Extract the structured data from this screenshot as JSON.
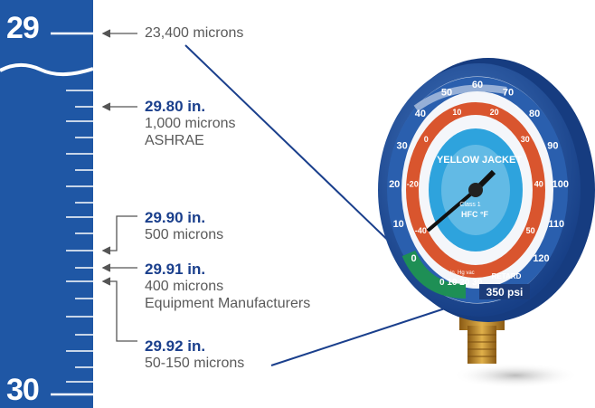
{
  "scale": {
    "top_label": "29",
    "bottom_label": "30"
  },
  "callouts": [
    {
      "lines": [
        "23,400 microns"
      ]
    },
    {
      "value": "29.80 in.",
      "lines": [
        "1,000 microns",
        "ASHRAE"
      ]
    },
    {
      "value": "29.90 in.",
      "lines": [
        "500 microns"
      ]
    },
    {
      "value": "29.91 in.",
      "lines": [
        "400 microns",
        "Equipment Manufacturers"
      ]
    },
    {
      "value": "29.92 in.",
      "lines": [
        "50-150 microns"
      ]
    }
  ],
  "gauge": {
    "brand": "YELLOW JACKET",
    "refrigerant": "HFC °F",
    "class_text": "Class 1",
    "retard_label": "RETARD",
    "psi_label": "350 psi",
    "vacuum_label": "in. Hg vac",
    "vacuum_ticks": [
      "0",
      "10",
      "20",
      "30"
    ],
    "blue_ticks": [
      "0",
      "10",
      "20",
      "30",
      "40",
      "50",
      "60",
      "70",
      "80",
      "90",
      "100",
      "110",
      "120"
    ],
    "red_ticks": [
      "-40",
      "-20",
      "0",
      "10",
      "20",
      "30",
      "40",
      "50"
    ],
    "colors": {
      "scale_blue": "#1f57a5",
      "bezel_blue": "#2a5fae",
      "red_ring": "#d9552e",
      "green_arc": "#1e8f55",
      "brass": "#c9952f"
    }
  }
}
